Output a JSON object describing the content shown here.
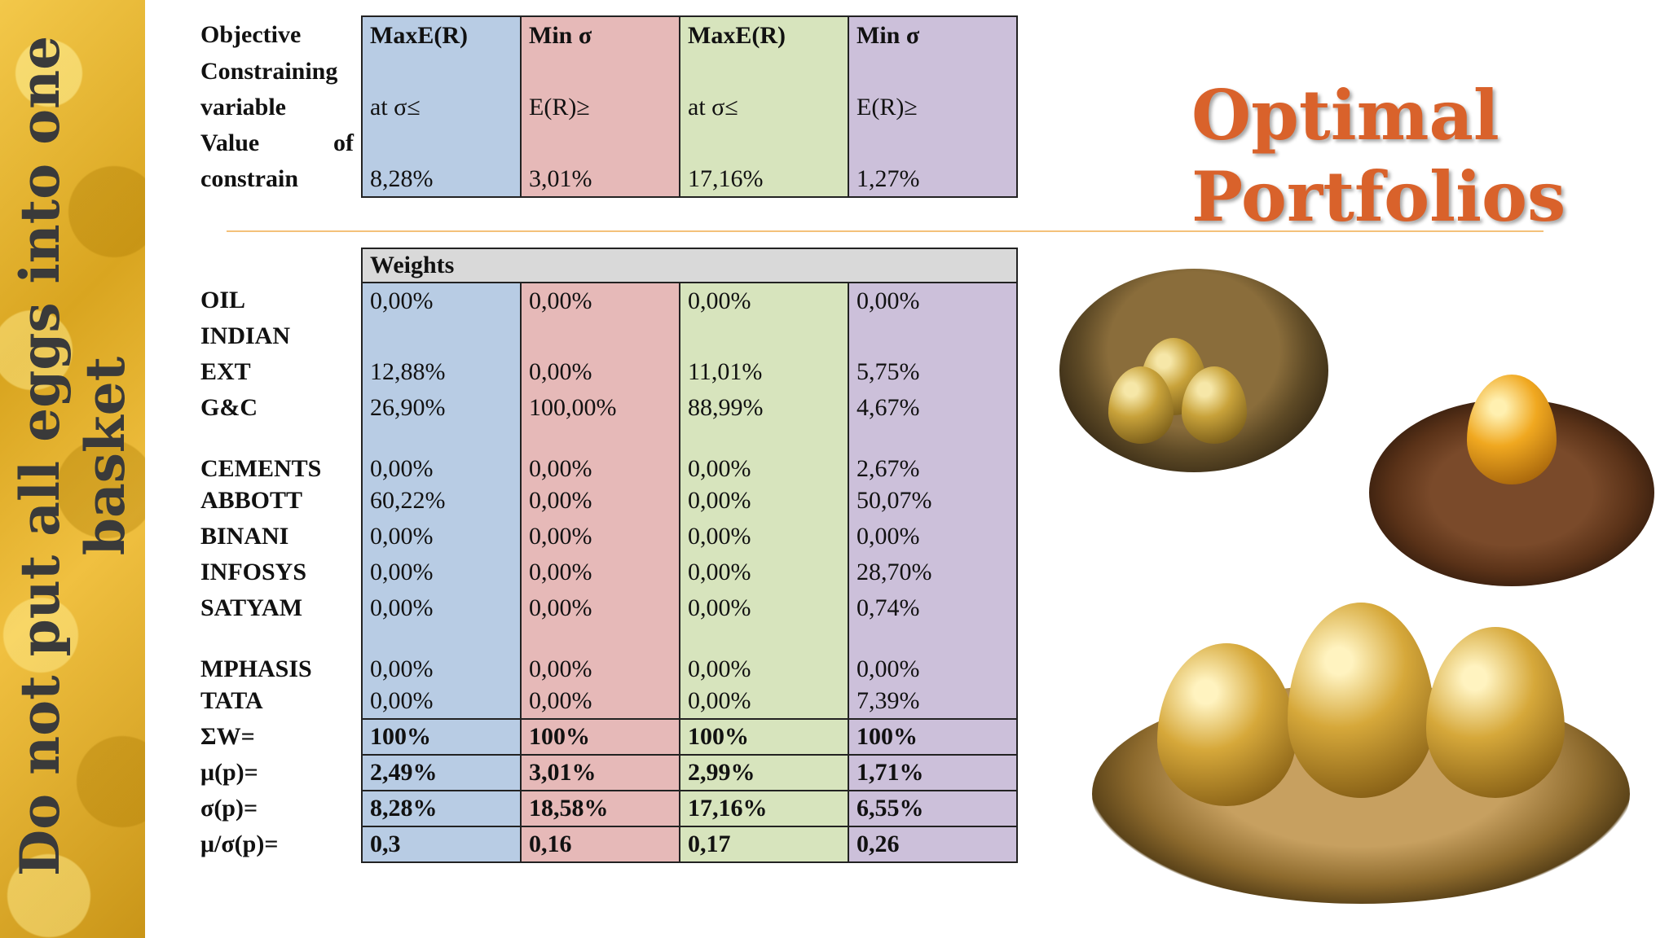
{
  "sidebar": {
    "line1": "Do not put all eggs into one",
    "line2": "basket"
  },
  "title": {
    "line1": "Optimal",
    "line2": "Portfolios"
  },
  "objective_table": {
    "row_objective": {
      "label": "Objective",
      "values": [
        "MaxE(R)",
        "Min σ",
        "MaxE(R)",
        "Min σ"
      ]
    },
    "row_constraining": {
      "label": "Constraining"
    },
    "row_variable": {
      "label": "variable",
      "values": [
        "at σ≤",
        "E(R)≥",
        "at σ≤",
        "E(R)≥"
      ]
    },
    "row_value": {
      "label_a": "Value",
      "label_b": "of"
    },
    "row_constrain": {
      "label": "constrain",
      "values": [
        "8,28%",
        "3,01%",
        "17,16%",
        "1,27%"
      ]
    }
  },
  "weights_table": {
    "header": "Weights",
    "rows": [
      {
        "label": "OIL",
        "values": [
          "0,00%",
          "0,00%",
          "0,00%",
          "0,00%"
        ]
      },
      {
        "label": "INDIAN",
        "values": [
          "",
          "",
          "",
          ""
        ]
      },
      {
        "label": "EXT",
        "values": [
          "12,88%",
          "0,00%",
          "11,01%",
          "5,75%"
        ]
      },
      {
        "label": "G&C",
        "values": [
          "26,90%",
          "100,00%",
          "88,99%",
          "4,67%"
        ]
      },
      {
        "label": "CEMENTS",
        "values": [
          "0,00%",
          "0,00%",
          "0,00%",
          "2,67%"
        ]
      },
      {
        "label": "ABBOTT",
        "values": [
          "60,22%",
          "0,00%",
          "0,00%",
          "50,07%"
        ]
      },
      {
        "label": "BINANI",
        "values": [
          "0,00%",
          "0,00%",
          "0,00%",
          "0,00%"
        ]
      },
      {
        "label": "INFOSYS",
        "values": [
          "0,00%",
          "0,00%",
          "0,00%",
          "28,70%"
        ]
      },
      {
        "label": "SATYAM",
        "values": [
          "0,00%",
          "0,00%",
          "0,00%",
          "0,74%"
        ]
      },
      {
        "label": "MPHASIS",
        "values": [
          "0,00%",
          "0,00%",
          "0,00%",
          "0,00%"
        ]
      },
      {
        "label": "TATA",
        "values": [
          "0,00%",
          "0,00%",
          "0,00%",
          "7,39%"
        ]
      }
    ],
    "stats": [
      {
        "label": "ΣW=",
        "values": [
          "100%",
          "100%",
          "100%",
          "100%"
        ]
      },
      {
        "label": "μ(p)=",
        "values": [
          "2,49%",
          "3,01%",
          "2,99%",
          "1,71%"
        ]
      },
      {
        "label": "σ(p)=",
        "values": [
          "8,28%",
          "18,58%",
          "17,16%",
          "6,55%"
        ]
      },
      {
        "label": "μ/σ(p)=",
        "values": [
          "0,3",
          "0,16",
          "0,17",
          "0,26"
        ]
      }
    ]
  },
  "colors": {
    "col1": "#b8cce4",
    "col2": "#e6b9b8",
    "col3": "#d7e4bd",
    "col4": "#ccc0da",
    "title": "#d9622b",
    "sidebar_gold": "#d9a520"
  }
}
